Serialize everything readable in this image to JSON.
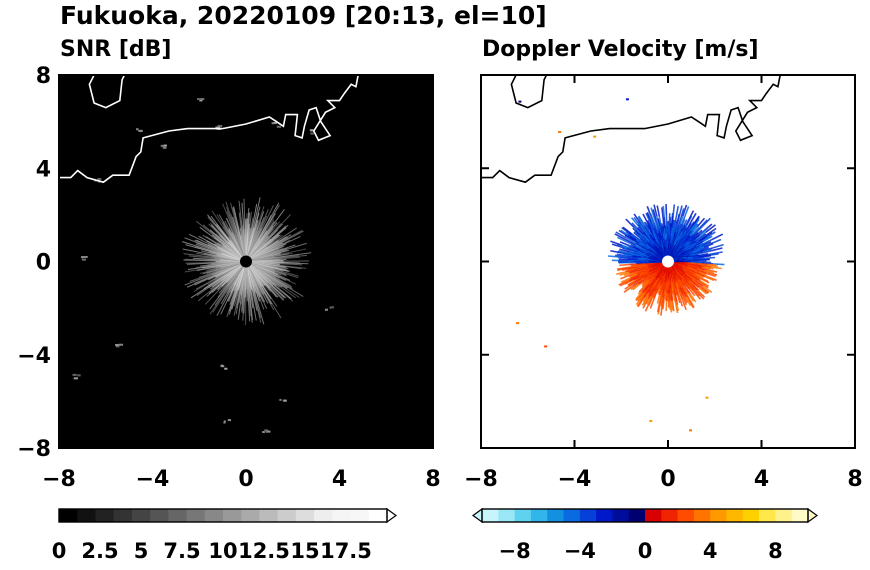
{
  "figure": {
    "title": "Fukuoka, 20220109 [20:13, el=10]"
  },
  "chart_data": [
    {
      "type": "heatmap",
      "title": "SNR [dB]",
      "xlim": [
        -8,
        8
      ],
      "ylim": [
        -8,
        8
      ],
      "xticks": [
        -8,
        -4,
        0,
        4,
        8
      ],
      "yticks": [
        -8,
        -4,
        0,
        4,
        8
      ],
      "xtick_labels": [
        "−8",
        "−4",
        "0",
        "4",
        "8"
      ],
      "ytick_labels": [
        "−8",
        "−4",
        "0",
        "4",
        "8"
      ],
      "background_color": "#000000",
      "echo_radius": 2.4,
      "colorbar": {
        "range": [
          0,
          20
        ],
        "extend": "max",
        "ticks": [
          0,
          2.5,
          5,
          7.5,
          10,
          12.5,
          15,
          17.5
        ],
        "tick_labels": [
          "0",
          "2.5",
          "5",
          "7.5",
          "10",
          "12.5",
          "15",
          "17.5"
        ],
        "colors": [
          "#000000",
          "#111111",
          "#222222",
          "#333333",
          "#444444",
          "#555555",
          "#666666",
          "#777777",
          "#888888",
          "#999999",
          "#aaaaaa",
          "#bbbbbb",
          "#cccccc",
          "#dddddd",
          "#eeeeee",
          "#f5f5f5",
          "#f7f7f7",
          "#ffffff"
        ]
      }
    },
    {
      "type": "heatmap",
      "title": "Doppler Velocity [m/s]",
      "xlim": [
        -8,
        8
      ],
      "ylim": [
        -8,
        8
      ],
      "xticks": [
        -8,
        -4,
        0,
        4,
        8
      ],
      "yticks": [
        -8,
        -4,
        0,
        4,
        8
      ],
      "xtick_labels": [
        "−8",
        "−4",
        "0",
        "4",
        "8"
      ],
      "ytick_labels": [
        "−8",
        "−4",
        "0",
        "4",
        "8"
      ],
      "background_color": "#ffffff",
      "echo_radius": 2.4,
      "colorbar": {
        "range": [
          -10,
          10
        ],
        "extend": "both",
        "ticks": [
          -8,
          -4,
          0,
          4,
          8
        ],
        "tick_labels": [
          "−8",
          "−4",
          "0",
          "4",
          "8"
        ],
        "colors": [
          "#c8f4fc",
          "#9ae8f6",
          "#5fd2ef",
          "#31b5ea",
          "#1490e0",
          "#0a6be0",
          "#0540d8",
          "#0019c8",
          "#000c9a",
          "#000070",
          "#d80000",
          "#f02400",
          "#ff4c00",
          "#ff7300",
          "#ff9900",
          "#ffb700",
          "#ffd000",
          "#ffe84a",
          "#fff28c",
          "#fffac8"
        ]
      }
    }
  ]
}
